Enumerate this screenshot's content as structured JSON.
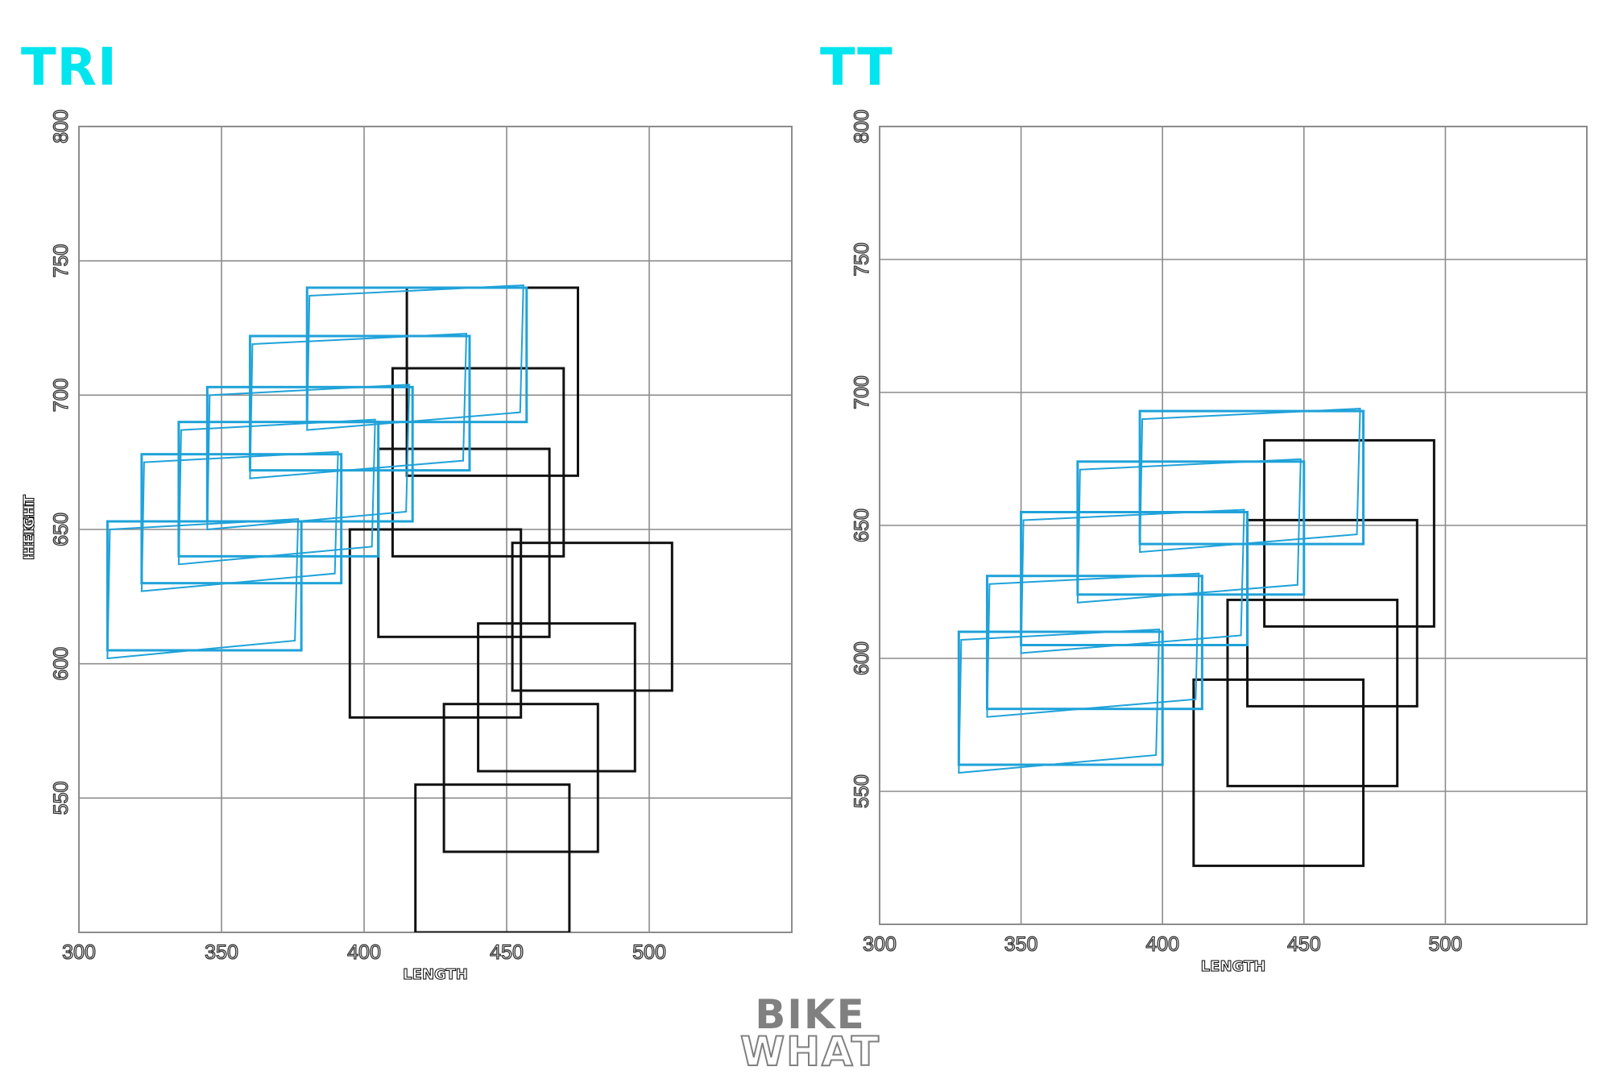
{
  "colors": {
    "title": "#00e5ee",
    "road": "#111111",
    "tri": "#1fa2d9",
    "grid": "#8c8c8c",
    "tick": "#333333"
  },
  "chart_data": [
    {
      "type": "rectangle-plot",
      "title": "TRI",
      "xlabel": "LENGTH",
      "ylabel": "HEIGHT",
      "xlim": [
        300,
        550
      ],
      "ylim": [
        500,
        800
      ],
      "xticks": [
        "300",
        "350",
        "400",
        "450",
        "500"
      ],
      "yticks": [
        "550",
        "600",
        "650",
        "700",
        "750",
        "800"
      ],
      "grid": true,
      "series": [
        {
          "style": "black",
          "rects": [
            {
              "x1": 415,
              "y1": 670,
              "x2": 475,
              "y2": 740
            },
            {
              "x1": 410,
              "y1": 640,
              "x2": 470,
              "y2": 710
            },
            {
              "x1": 405,
              "y1": 610,
              "x2": 465,
              "y2": 680
            },
            {
              "x1": 395,
              "y1": 580,
              "x2": 455,
              "y2": 650
            },
            {
              "x1": 452,
              "y1": 590,
              "x2": 508,
              "y2": 645
            },
            {
              "x1": 440,
              "y1": 560,
              "x2": 495,
              "y2": 615
            },
            {
              "x1": 428,
              "y1": 530,
              "x2": 482,
              "y2": 585
            },
            {
              "x1": 418,
              "y1": 500,
              "x2": 472,
              "y2": 555
            }
          ]
        },
        {
          "style": "blue",
          "rects": [
            {
              "x1": 380,
              "y1": 690,
              "x2": 457,
              "y2": 740
            },
            {
              "x1": 360,
              "y1": 672,
              "x2": 437,
              "y2": 722
            },
            {
              "x1": 345,
              "y1": 653,
              "x2": 417,
              "y2": 703
            },
            {
              "x1": 335,
              "y1": 640,
              "x2": 405,
              "y2": 690
            },
            {
              "x1": 322,
              "y1": 630,
              "x2": 392,
              "y2": 678
            },
            {
              "x1": 310,
              "y1": 605,
              "x2": 378,
              "y2": 653
            }
          ]
        }
      ]
    },
    {
      "type": "rectangle-plot",
      "title": "TT",
      "xlabel": "LENGTH",
      "ylabel": "HEIGHT",
      "xlim": [
        300,
        550
      ],
      "ylim": [
        500,
        800
      ],
      "xticks": [
        "300",
        "350",
        "400",
        "450",
        "500"
      ],
      "yticks": [
        "550",
        "600",
        "650",
        "700",
        "750",
        "800"
      ],
      "grid": true,
      "series": [
        {
          "style": "black",
          "rects": [
            {
              "x1": 436,
              "y1": 612,
              "x2": 496,
              "y2": 682
            },
            {
              "x1": 430,
              "y1": 582,
              "x2": 490,
              "y2": 652
            },
            {
              "x1": 423,
              "y1": 552,
              "x2": 483,
              "y2": 622
            },
            {
              "x1": 411,
              "y1": 522,
              "x2": 471,
              "y2": 592
            }
          ]
        },
        {
          "style": "blue",
          "rects": [
            {
              "x1": 392,
              "y1": 643,
              "x2": 471,
              "y2": 693
            },
            {
              "x1": 370,
              "y1": 624,
              "x2": 450,
              "y2": 674
            },
            {
              "x1": 350,
              "y1": 605,
              "x2": 430,
              "y2": 655
            },
            {
              "x1": 338,
              "y1": 581,
              "x2": 414,
              "y2": 631
            },
            {
              "x1": 328,
              "y1": 560,
              "x2": 400,
              "y2": 610
            }
          ]
        }
      ]
    }
  ],
  "logo": {
    "line1": "BIKE",
    "line2": "WHAT"
  }
}
